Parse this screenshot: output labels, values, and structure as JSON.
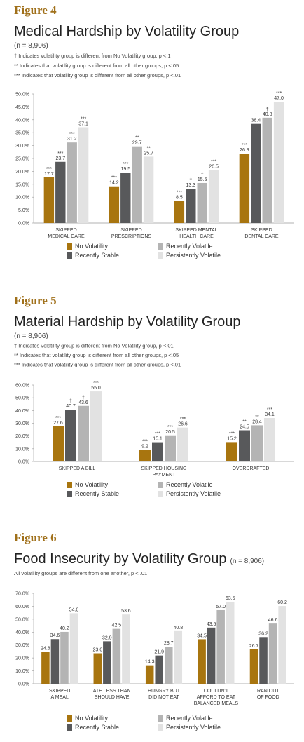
{
  "chart_data": [
    {
      "type": "bar",
      "label": "Figure 4",
      "title": "Medical Hardship by Volatility Group",
      "subtitle": "(n = 8,906)",
      "notes": [
        "† Indicates volatility group is different from No Volatility group, p <.1",
        "** Indicates that volatility group is different from all other groups, p <.05",
        "*** Indicates that volatility group is different from all other groups, p <.01"
      ],
      "categories": [
        "SKIPPED\nMEDICAL CARE",
        "SKIPPED\nPRESCRIPTIONS",
        "SKIPPED MENTAL\nHEALTH CARE",
        "SKIPPED\nDENTAL CARE"
      ],
      "series": [
        {
          "name": "No Volatility",
          "color": "#a8750f",
          "values": [
            17.7,
            14.2,
            8.5,
            26.9
          ],
          "markers": [
            "***",
            "***",
            "***",
            "***"
          ]
        },
        {
          "name": "Recently Stable",
          "color": "#58595b",
          "values": [
            23.7,
            19.5,
            13.3,
            38.4
          ],
          "markers": [
            "***",
            "***",
            "†",
            "†"
          ]
        },
        {
          "name": "Recently Volatile",
          "color": "#b4b4b4",
          "values": [
            31.2,
            29.7,
            15.5,
            40.8
          ],
          "markers": [
            "***",
            "**",
            "†",
            "†"
          ]
        },
        {
          "name": "Persistently Volatile",
          "color": "#e2e2e2",
          "values": [
            37.1,
            25.7,
            20.5,
            47.0
          ],
          "value_labels": [
            "37.1",
            "25.7",
            "20.5",
            "47.0"
          ],
          "markers": [
            "***",
            "**",
            "***",
            "***"
          ]
        }
      ],
      "ylim": [
        0,
        50
      ],
      "yticks": [
        {
          "value": 0,
          "label": "0.0%"
        },
        {
          "value": 5,
          "label": "5.0%"
        },
        {
          "value": 10,
          "label": "10.0%"
        },
        {
          "value": 15,
          "label": "15.0%"
        },
        {
          "value": 20,
          "label": "20.0%"
        },
        {
          "value": 25,
          "label": "25.0%"
        },
        {
          "value": 30,
          "label": "30.0%"
        },
        {
          "value": 35,
          "label": "35.0%"
        },
        {
          "value": 40,
          "label": "40.0%"
        },
        {
          "value": 45,
          "label": "45.0%"
        },
        {
          "value": 50,
          "label": "50.0%"
        }
      ],
      "grid": false,
      "legend": "bottom"
    },
    {
      "type": "bar",
      "label": "Figure 5",
      "title": "Material Hardship by Volatility Group",
      "subtitle": "(n = 8,906)",
      "notes": [
        "† Indicates volatility group is different from No Volatility group, p <.01",
        "** Indicates that volatility group is different from all other groups, p <.05",
        "*** Indicates that volatility group is different from all other groups, p <.01"
      ],
      "categories": [
        "SKIPPED A BILL",
        "SKIPPED HOUSING\nPAYMENT",
        "OVERDRAFTED"
      ],
      "series": [
        {
          "name": "No Volatility",
          "color": "#a8750f",
          "values": [
            27.6,
            9.2,
            15.2
          ],
          "markers": [
            "***",
            "***",
            "***"
          ]
        },
        {
          "name": "Recently Stable",
          "color": "#58595b",
          "values": [
            40.7,
            15.1,
            24.5
          ],
          "markers": [
            "†",
            "***",
            "**"
          ]
        },
        {
          "name": "Recently Volatile",
          "color": "#b4b4b4",
          "values": [
            43.6,
            20.5,
            28.4
          ],
          "markers": [
            "†",
            "***",
            "**"
          ]
        },
        {
          "name": "Persistently Volatile",
          "color": "#e2e2e2",
          "values": [
            55.0,
            26.6,
            34.1
          ],
          "value_labels": [
            "55.0",
            "26.6",
            "34.1"
          ],
          "markers": [
            "***",
            "***",
            "***"
          ]
        }
      ],
      "ylim": [
        0,
        60
      ],
      "yticks": [
        {
          "value": 0,
          "label": "0.0%"
        },
        {
          "value": 10,
          "label": "10.0%"
        },
        {
          "value": 20,
          "label": "20.0%"
        },
        {
          "value": 30,
          "label": "30.0%"
        },
        {
          "value": 40,
          "label": "40.0%"
        },
        {
          "value": 50,
          "label": "50.0%"
        },
        {
          "value": 60,
          "label": "60.0%"
        }
      ],
      "grid": false,
      "legend": "bottom"
    },
    {
      "type": "bar",
      "label": "Figure 6",
      "title": "Food Insecurity by Volatility Group",
      "subtitle": "(n = 8,906)",
      "notes": [
        "All volatility groups are different from one another, p < .01"
      ],
      "categories": [
        "SKIPPED\nA MEAL",
        "ATE LESS THAN\nSHOULD HAVE",
        "HUNGRY BUT\nDID NOT EAT",
        "COULDN'T\nAFFORD TO EAT\nBALANCED MEALS",
        "RAN OUT\nOF FOOD"
      ],
      "series": [
        {
          "name": "No Volatility",
          "color": "#a8750f",
          "values": [
            24.8,
            23.6,
            14.3,
            34.5,
            26.7
          ]
        },
        {
          "name": "Recently Stable",
          "color": "#58595b",
          "values": [
            34.6,
            32.9,
            21.9,
            43.5,
            36.2
          ]
        },
        {
          "name": "Recently Volatile",
          "color": "#b4b4b4",
          "values": [
            40.2,
            42.5,
            28.7,
            57.0,
            46.6
          ],
          "value_labels": [
            "40.2",
            "42.5",
            "28.7",
            "57.0",
            "46.6"
          ]
        },
        {
          "name": "Persistently Volatile",
          "color": "#e2e2e2",
          "values": [
            54.6,
            53.6,
            40.8,
            63.5,
            60.2
          ]
        }
      ],
      "ylim": [
        0,
        70
      ],
      "yticks": [
        {
          "value": 0,
          "label": "0.0%"
        },
        {
          "value": 10,
          "label": "10.0%"
        },
        {
          "value": 20,
          "label": "20.0%"
        },
        {
          "value": 30,
          "label": "30.0%"
        },
        {
          "value": 40,
          "label": "40.0%"
        },
        {
          "value": 50,
          "label": "50.0%"
        },
        {
          "value": 60,
          "label": "60.0%"
        },
        {
          "value": 70,
          "label": "70.0%"
        }
      ],
      "grid": false,
      "legend": "bottom"
    }
  ]
}
